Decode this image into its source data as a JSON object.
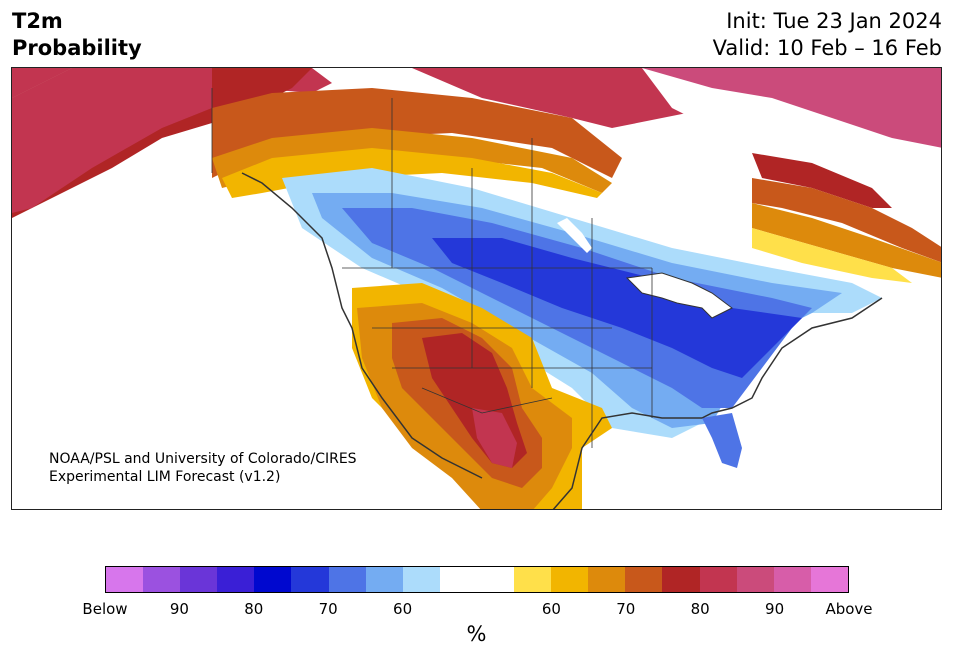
{
  "title": {
    "line1": "T2m",
    "line2": "Probability"
  },
  "init_label": "Init: Tue 23 Jan 2024",
  "valid_label": "Valid: 10 Feb – 16 Feb",
  "credit": {
    "line1": "NOAA/PSL and University of Colorado/CIRES",
    "line2": "Experimental LIM Forecast (v1.2)"
  },
  "colorbar": {
    "colors": [
      "#d776ec",
      "#9b51e0",
      "#6a35d8",
      "#3a1fd6",
      "#0008cf",
      "#2438d9",
      "#4e74e6",
      "#74acf2",
      "#acdcfb",
      "#ffffff",
      "#ffffff",
      "#ffe04a",
      "#f2b500",
      "#dd8a0c",
      "#c8581b",
      "#b02525",
      "#c23550",
      "#cb4b7b",
      "#d75da9",
      "#e676d8"
    ],
    "tick_labels": [
      "Below",
      "90",
      "80",
      "70",
      "60",
      "60",
      "70",
      "80",
      "90",
      "Above"
    ],
    "unit": "%"
  },
  "legend_categories": [
    "Below",
    "90",
    "80",
    "70",
    "60",
    "60",
    "70",
    "80",
    "90",
    "Above"
  ]
}
